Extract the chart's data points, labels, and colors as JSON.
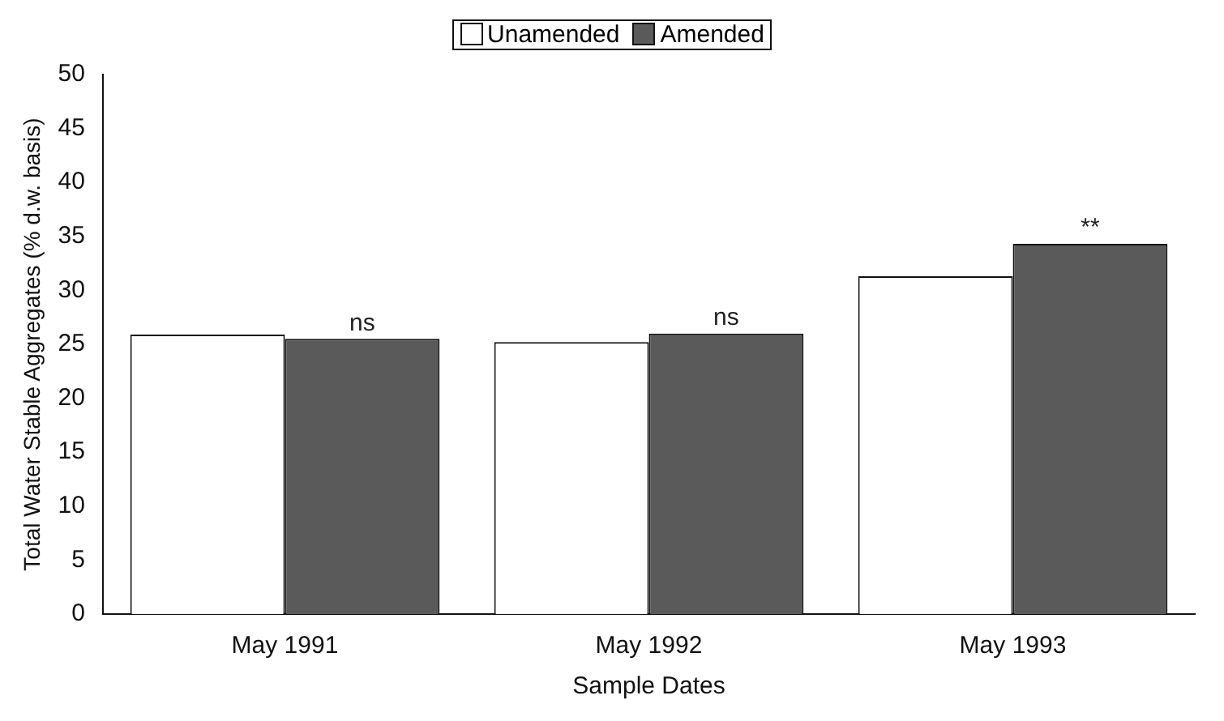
{
  "chart_data": {
    "type": "bar",
    "xlabel": "Sample Dates",
    "ylabel": "Total Water Stable Aggregates (% d.w. basis)",
    "categories": [
      "May 1991",
      "May 1992",
      "May 1993"
    ],
    "series": [
      {
        "name": "Unamended",
        "color": "#ffffff",
        "values": [
          25.9,
          25.2,
          31.3
        ]
      },
      {
        "name": "Amended",
        "color": "#5a5a5a",
        "values": [
          25.5,
          26.0,
          34.3
        ]
      }
    ],
    "ylim": [
      0,
      50
    ],
    "yticks": [
      0,
      5,
      10,
      15,
      20,
      25,
      30,
      35,
      40,
      45,
      50
    ],
    "grid": false,
    "legend": "top",
    "annotations": [
      {
        "text": "ns",
        "x": "May 1991",
        "y": 25.5
      },
      {
        "text": "ns",
        "x": "May 1992",
        "y": 26.0
      },
      {
        "text": "**",
        "x": "May 1993",
        "y": 34.3
      }
    ]
  }
}
